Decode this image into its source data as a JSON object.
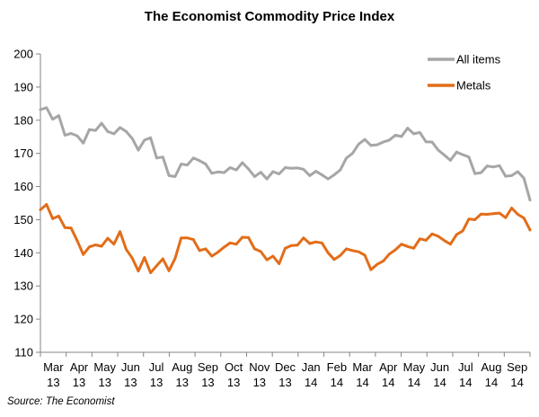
{
  "chart_data": {
    "type": "line",
    "title": "The Economist Commodity  Price Index",
    "source": "Source: The Economist",
    "ylim": [
      110,
      200
    ],
    "yticks": [
      110,
      120,
      130,
      140,
      150,
      160,
      170,
      180,
      190,
      200
    ],
    "xlabels": [
      [
        "Mar",
        "13"
      ],
      [
        "Apr",
        "13"
      ],
      [
        "May",
        "13"
      ],
      [
        "Jun",
        "13"
      ],
      [
        "Jul",
        "13"
      ],
      [
        "Aug",
        "13"
      ],
      [
        "Sep",
        "13"
      ],
      [
        "Oct",
        "13"
      ],
      [
        "Nov",
        "13"
      ],
      [
        "Dec",
        "13"
      ],
      [
        "Jan",
        "14"
      ],
      [
        "Feb",
        "14"
      ],
      [
        "Mar",
        "14"
      ],
      [
        "Apr",
        "14"
      ],
      [
        "May",
        "14"
      ],
      [
        "Jun",
        "14"
      ],
      [
        "Jul",
        "14"
      ],
      [
        "Aug",
        "14"
      ],
      [
        "Sep",
        "14"
      ]
    ],
    "series": [
      {
        "name": "All items",
        "color": "#a6a6a6",
        "values": [
          183.2,
          183.8,
          180.3,
          181.4,
          175.5,
          176.0,
          175.3,
          173.1,
          177.2,
          176.9,
          179.1,
          176.6,
          175.9,
          177.8,
          176.6,
          174.5,
          171.0,
          174.0,
          174.7,
          168.6,
          168.9,
          163.3,
          163.0,
          166.8,
          166.5,
          168.6,
          167.8,
          166.8,
          164.0,
          164.4,
          164.2,
          165.7,
          165.0,
          167.2,
          165.3,
          163.0,
          164.3,
          162.3,
          164.5,
          163.8,
          165.7,
          165.5,
          165.6,
          165.2,
          163.3,
          164.6,
          163.5,
          162.3,
          163.5,
          165.0,
          168.6,
          170.0,
          172.8,
          174.2,
          172.4,
          172.6,
          173.4,
          174.0,
          175.5,
          175.1,
          177.6,
          175.9,
          176.3,
          173.5,
          173.4,
          171.0,
          169.5,
          167.9,
          170.4,
          169.6,
          168.9,
          163.9,
          164.2,
          166.2,
          165.9,
          166.3,
          163.1,
          163.3,
          164.5,
          162.5,
          155.9
        ]
      },
      {
        "name": "Metals",
        "color": "#e26d19",
        "values": [
          153.0,
          154.6,
          150.3,
          151.1,
          147.6,
          147.5,
          143.7,
          139.5,
          141.8,
          142.4,
          142.0,
          144.4,
          142.6,
          146.4,
          141.1,
          138.4,
          134.5,
          138.6,
          134.0,
          136.1,
          138.2,
          134.6,
          138.3,
          144.5,
          144.5,
          144.0,
          140.7,
          141.2,
          139.0,
          140.2,
          141.7,
          143.0,
          142.6,
          144.7,
          144.6,
          141.2,
          140.4,
          137.9,
          139.0,
          136.7,
          141.4,
          142.2,
          142.3,
          144.5,
          142.8,
          143.3,
          143.0,
          140.0,
          138.0,
          139.2,
          141.2,
          140.7,
          140.3,
          139.3,
          134.9,
          136.5,
          137.5,
          139.6,
          140.9,
          142.6,
          141.9,
          141.4,
          144.2,
          143.8,
          145.7,
          145.0,
          143.7,
          142.6,
          145.5,
          146.6,
          150.2,
          150.0,
          151.7,
          151.6,
          151.8,
          152.0,
          150.6,
          153.5,
          151.6,
          150.5,
          146.9
        ]
      }
    ]
  }
}
